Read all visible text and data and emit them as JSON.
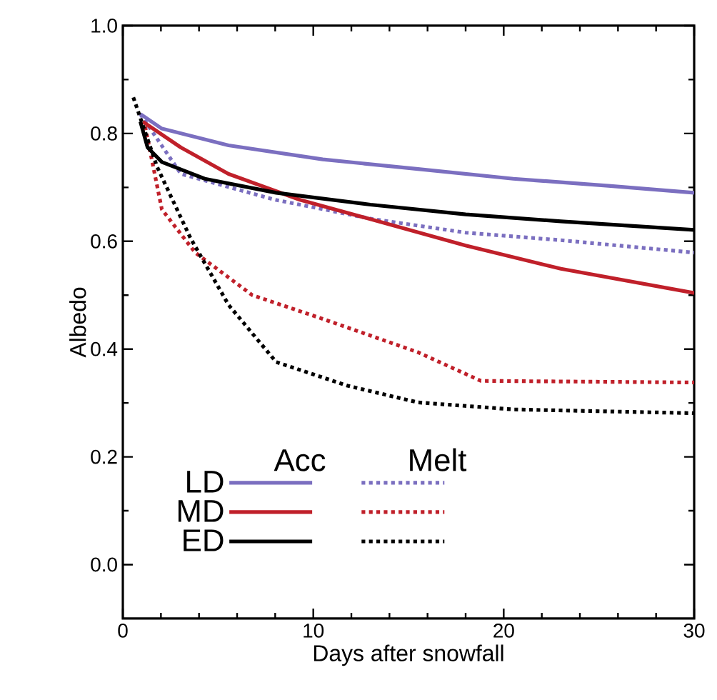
{
  "chart_data": {
    "type": "line",
    "xlabel": "Days after snowfall",
    "ylabel": "Albedo",
    "xlim": [
      0,
      30
    ],
    "ylim": [
      -0.1,
      1.0
    ],
    "xticks": [
      0,
      10,
      20,
      30
    ],
    "yticks": [
      {
        "value": 0,
        "label": "0.0"
      },
      {
        "value": 0.2,
        "label": "0.2"
      },
      {
        "value": 0.4,
        "label": "0.4"
      },
      {
        "value": 0.6,
        "label": "0.6"
      },
      {
        "value": 0.8,
        "label": "0.8"
      },
      {
        "value": 1.0,
        "label": "1.0"
      }
    ],
    "legend": "bottom left",
    "grid": false,
    "annotations": [
      "Acc",
      "Melt"
    ],
    "series": [
      {
        "name": "LD",
        "color": "#7b6fc0",
        "line_style": "solid",
        "x": [
          0.92,
          2.05,
          5.55,
          10.5,
          15.5,
          20.5,
          25.5,
          30
        ],
        "values": [
          0.836,
          0.809,
          0.778,
          0.752,
          0.734,
          0.716,
          0.703,
          0.69
        ]
      },
      {
        "color": "#7b6fc0",
        "line_style": "dotted",
        "x": [
          0.92,
          3.05,
          8.0,
          13,
          18,
          23,
          30
        ],
        "values": [
          0.836,
          0.725,
          0.677,
          0.642,
          0.616,
          0.602,
          0.579
        ]
      },
      {
        "name": "MD",
        "color": "#c0202a",
        "line_style": "solid",
        "x": [
          1.05,
          3.05,
          5.55,
          9.3,
          13,
          18,
          23,
          30
        ],
        "values": [
          0.822,
          0.774,
          0.725,
          0.677,
          0.641,
          0.592,
          0.549,
          0.504
        ]
      },
      {
        "color": "#c0202a",
        "line_style": "dotted",
        "x": [
          1.17,
          2.05,
          3.8,
          6.8,
          10.5,
          15.5,
          18.8,
          30
        ],
        "values": [
          0.813,
          0.659,
          0.579,
          0.5,
          0.456,
          0.394,
          0.341,
          0.338
        ]
      },
      {
        "name": "ED",
        "color": "#000000",
        "line_style": "solid",
        "x": [
          0.92,
          1.3,
          2.05,
          4.3,
          8.05,
          13,
          18,
          23,
          30
        ],
        "values": [
          0.822,
          0.774,
          0.747,
          0.716,
          0.69,
          0.668,
          0.65,
          0.637,
          0.621
        ]
      },
      {
        "color": "#000000",
        "line_style": "dotted",
        "x": [
          0.55,
          1.8,
          3.55,
          5.55,
          8.05,
          11.8,
          15.5,
          20.5,
          30
        ],
        "values": [
          0.867,
          0.738,
          0.606,
          0.482,
          0.376,
          0.332,
          0.301,
          0.288,
          0.281
        ]
      }
    ]
  }
}
